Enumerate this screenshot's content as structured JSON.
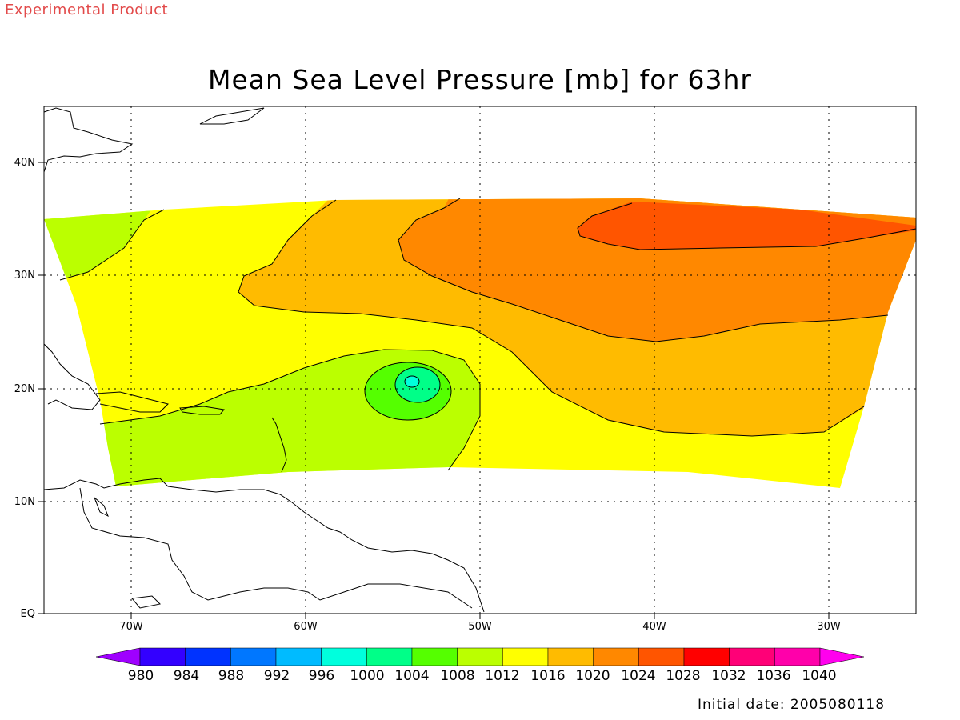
{
  "header": {
    "experimental_label": "Experimental Product",
    "title": "Mean Sea Level Pressure [mb] for 63hr"
  },
  "axes": {
    "lat_labels": [
      "40N",
      "30N",
      "20N",
      "10N",
      "EQ"
    ],
    "lon_labels": [
      "70W",
      "60W",
      "50W",
      "40W",
      "30W"
    ]
  },
  "colorbar": {
    "levels": [
      "980",
      "984",
      "988",
      "992",
      "996",
      "1000",
      "1004",
      "1008",
      "1012",
      "1016",
      "1020",
      "1024",
      "1028",
      "1032",
      "1036",
      "1040"
    ],
    "colors": [
      "#9f00ff",
      "#3300ff",
      "#0033ff",
      "#0077ff",
      "#00bbff",
      "#00ffdd",
      "#00ff88",
      "#55ff00",
      "#bbff00",
      "#ffff00",
      "#ffbb00",
      "#ff8800",
      "#ff5500",
      "#ff0000",
      "#ff0077",
      "#ff00aa",
      "#ff00ee"
    ]
  },
  "fields": {
    "map_colors": {
      "p1008": "#bbff00",
      "p1004": "#55ff00",
      "p1000": "#00ff88",
      "p996": "#00ffdd",
      "p1012": "#ffff00",
      "p1016": "#ffbb00",
      "p1020": "#ff8800",
      "p1024": "#ff5500"
    }
  },
  "footer": {
    "initial_date": "Initial date: 2005080118"
  }
}
